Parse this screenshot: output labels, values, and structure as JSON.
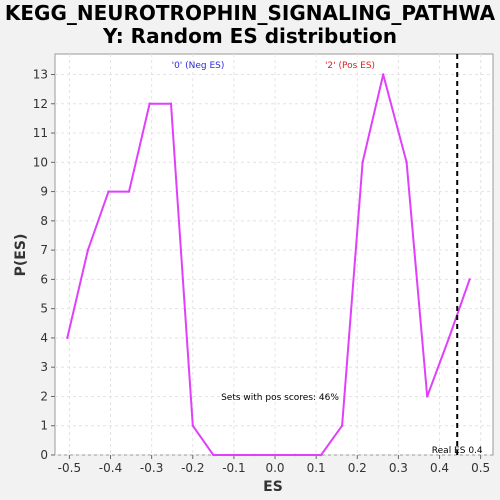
{
  "chart_data": {
    "type": "line",
    "title_line1": "KEGG_NEUROTROPHIN_SIGNALING_PATHWA",
    "title_line2": "Y: Random ES distribution",
    "xlabel": "ES",
    "ylabel": "P(ES)",
    "xlim": [
      -0.535,
      0.53
    ],
    "ylim": [
      0,
      13.7
    ],
    "xticks": [
      -0.5,
      -0.4,
      -0.3,
      -0.2,
      -0.1,
      0.0,
      0.1,
      0.2,
      0.3,
      0.4,
      0.5
    ],
    "xtick_labels": [
      "-0.5",
      "-0.4",
      "-0.3",
      "-0.2",
      "-0.1",
      "0.0",
      "0.1",
      "0.2",
      "0.3",
      "0.4",
      "0.5"
    ],
    "yticks": [
      0,
      1,
      2,
      3,
      4,
      5,
      6,
      7,
      8,
      9,
      10,
      11,
      12,
      13
    ],
    "ytick_labels": [
      "0",
      "1",
      "2",
      "3",
      "4",
      "5",
      "6",
      "7",
      "8",
      "9",
      "10",
      "11",
      "12",
      "13"
    ],
    "grid": true,
    "series": [
      {
        "color": "#e040fb",
        "x": [
          -0.505,
          -0.455,
          -0.405,
          -0.355,
          -0.305,
          -0.253,
          -0.2,
          -0.15,
          -0.1,
          -0.05,
          0.0,
          0.05,
          0.112,
          0.163,
          0.213,
          0.263,
          0.32,
          0.37,
          0.423,
          0.473
        ],
        "y": [
          4,
          7,
          9,
          9,
          12,
          12,
          1,
          0,
          0,
          0,
          0,
          0,
          0,
          1,
          10,
          13,
          10,
          2,
          4,
          6
        ]
      }
    ],
    "real_es": {
      "x": 0.443,
      "label": "Real ES 0.4",
      "color": "#000000"
    },
    "annotations": {
      "neg_label": "'0' (Neg ES)",
      "neg_color": "#2a2adb",
      "pos_label": "'2' (Pos ES)",
      "pos_color": "#e02020",
      "pos_scores_text": "Sets with pos scores: 46%"
    }
  }
}
